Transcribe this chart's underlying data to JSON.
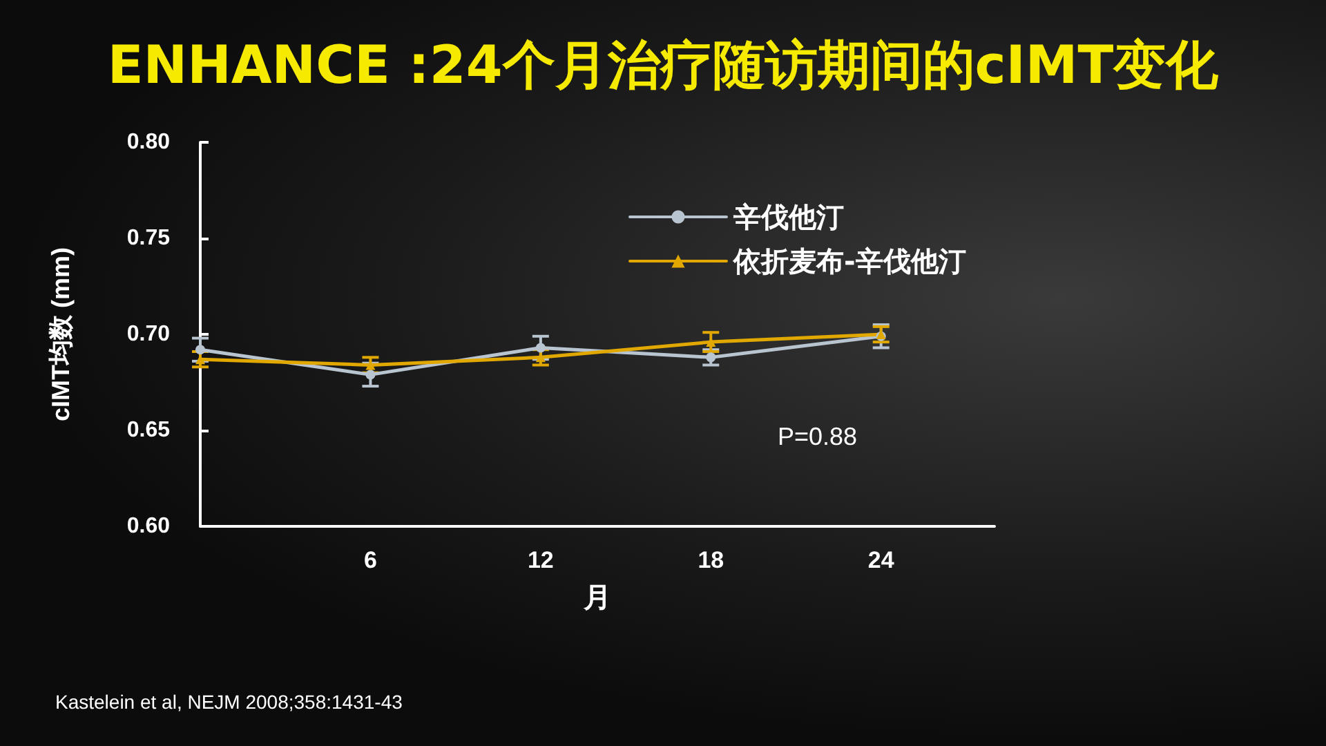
{
  "chart_data": {
    "type": "line",
    "title": "ENHANCE :24个月治疗随访期间的cIMT变化",
    "xlabel": "月",
    "ylabel": "cIMT均数 (mm)",
    "x": [
      0,
      6,
      12,
      18,
      24
    ],
    "series": [
      {
        "name": "辛伐他汀",
        "color": "#b8c4d0",
        "marker": "circle",
        "values": [
          0.692,
          0.679,
          0.693,
          0.688,
          0.699
        ],
        "errors": [
          0.006,
          0.006,
          0.006,
          0.004,
          0.006
        ]
      },
      {
        "name": "依折麦布-辛伐他汀",
        "color": "#e0a800",
        "marker": "triangle",
        "values": [
          0.687,
          0.684,
          0.688,
          0.696,
          0.7
        ],
        "errors": [
          0.004,
          0.004,
          0.004,
          0.005,
          0.004
        ]
      }
    ],
    "xlim": [
      0,
      28
    ],
    "xticks": [
      6,
      12,
      18,
      24
    ],
    "ylim": [
      0.6,
      0.8
    ],
    "yticks": [
      {
        "value": 0.6,
        "label": "0.60"
      },
      {
        "value": 0.65,
        "label": "0.65"
      },
      {
        "value": 0.7,
        "label": "0.70"
      },
      {
        "value": 0.75,
        "label": "0.75"
      },
      {
        "value": 0.8,
        "label": "0.80"
      }
    ],
    "grid": false,
    "legend": "top right",
    "line_style": "solid",
    "annotations": [
      "P=0.88",
      "Kastelein et al, NEJM 2008;358:1431-43"
    ]
  }
}
